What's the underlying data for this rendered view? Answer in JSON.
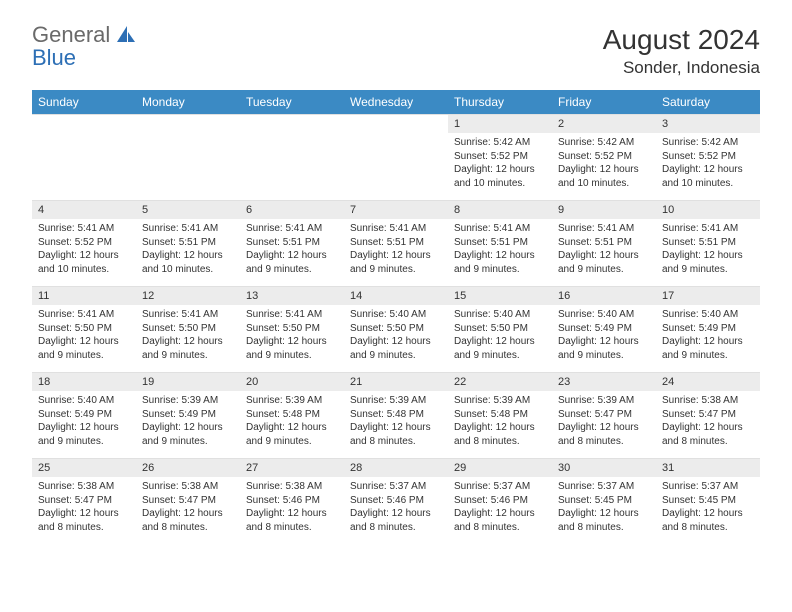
{
  "logo": {
    "word1": "General",
    "word2": "Blue"
  },
  "title": "August 2024",
  "location": "Sonder, Indonesia",
  "colors": {
    "header_bg": "#3b8ac4",
    "header_text": "#ffffff",
    "daynum_bg": "#ececec",
    "text": "#333333",
    "logo_gray": "#6a6a6a",
    "logo_blue": "#2d6fb5"
  },
  "weekdays": [
    "Sunday",
    "Monday",
    "Tuesday",
    "Wednesday",
    "Thursday",
    "Friday",
    "Saturday"
  ],
  "leading_blanks": 4,
  "days": [
    {
      "n": 1,
      "sunrise": "5:42 AM",
      "sunset": "5:52 PM",
      "daylight": "12 hours and 10 minutes."
    },
    {
      "n": 2,
      "sunrise": "5:42 AM",
      "sunset": "5:52 PM",
      "daylight": "12 hours and 10 minutes."
    },
    {
      "n": 3,
      "sunrise": "5:42 AM",
      "sunset": "5:52 PM",
      "daylight": "12 hours and 10 minutes."
    },
    {
      "n": 4,
      "sunrise": "5:41 AM",
      "sunset": "5:52 PM",
      "daylight": "12 hours and 10 minutes."
    },
    {
      "n": 5,
      "sunrise": "5:41 AM",
      "sunset": "5:51 PM",
      "daylight": "12 hours and 10 minutes."
    },
    {
      "n": 6,
      "sunrise": "5:41 AM",
      "sunset": "5:51 PM",
      "daylight": "12 hours and 9 minutes."
    },
    {
      "n": 7,
      "sunrise": "5:41 AM",
      "sunset": "5:51 PM",
      "daylight": "12 hours and 9 minutes."
    },
    {
      "n": 8,
      "sunrise": "5:41 AM",
      "sunset": "5:51 PM",
      "daylight": "12 hours and 9 minutes."
    },
    {
      "n": 9,
      "sunrise": "5:41 AM",
      "sunset": "5:51 PM",
      "daylight": "12 hours and 9 minutes."
    },
    {
      "n": 10,
      "sunrise": "5:41 AM",
      "sunset": "5:51 PM",
      "daylight": "12 hours and 9 minutes."
    },
    {
      "n": 11,
      "sunrise": "5:41 AM",
      "sunset": "5:50 PM",
      "daylight": "12 hours and 9 minutes."
    },
    {
      "n": 12,
      "sunrise": "5:41 AM",
      "sunset": "5:50 PM",
      "daylight": "12 hours and 9 minutes."
    },
    {
      "n": 13,
      "sunrise": "5:41 AM",
      "sunset": "5:50 PM",
      "daylight": "12 hours and 9 minutes."
    },
    {
      "n": 14,
      "sunrise": "5:40 AM",
      "sunset": "5:50 PM",
      "daylight": "12 hours and 9 minutes."
    },
    {
      "n": 15,
      "sunrise": "5:40 AM",
      "sunset": "5:50 PM",
      "daylight": "12 hours and 9 minutes."
    },
    {
      "n": 16,
      "sunrise": "5:40 AM",
      "sunset": "5:49 PM",
      "daylight": "12 hours and 9 minutes."
    },
    {
      "n": 17,
      "sunrise": "5:40 AM",
      "sunset": "5:49 PM",
      "daylight": "12 hours and 9 minutes."
    },
    {
      "n": 18,
      "sunrise": "5:40 AM",
      "sunset": "5:49 PM",
      "daylight": "12 hours and 9 minutes."
    },
    {
      "n": 19,
      "sunrise": "5:39 AM",
      "sunset": "5:49 PM",
      "daylight": "12 hours and 9 minutes."
    },
    {
      "n": 20,
      "sunrise": "5:39 AM",
      "sunset": "5:48 PM",
      "daylight": "12 hours and 9 minutes."
    },
    {
      "n": 21,
      "sunrise": "5:39 AM",
      "sunset": "5:48 PM",
      "daylight": "12 hours and 8 minutes."
    },
    {
      "n": 22,
      "sunrise": "5:39 AM",
      "sunset": "5:48 PM",
      "daylight": "12 hours and 8 minutes."
    },
    {
      "n": 23,
      "sunrise": "5:39 AM",
      "sunset": "5:47 PM",
      "daylight": "12 hours and 8 minutes."
    },
    {
      "n": 24,
      "sunrise": "5:38 AM",
      "sunset": "5:47 PM",
      "daylight": "12 hours and 8 minutes."
    },
    {
      "n": 25,
      "sunrise": "5:38 AM",
      "sunset": "5:47 PM",
      "daylight": "12 hours and 8 minutes."
    },
    {
      "n": 26,
      "sunrise": "5:38 AM",
      "sunset": "5:47 PM",
      "daylight": "12 hours and 8 minutes."
    },
    {
      "n": 27,
      "sunrise": "5:38 AM",
      "sunset": "5:46 PM",
      "daylight": "12 hours and 8 minutes."
    },
    {
      "n": 28,
      "sunrise": "5:37 AM",
      "sunset": "5:46 PM",
      "daylight": "12 hours and 8 minutes."
    },
    {
      "n": 29,
      "sunrise": "5:37 AM",
      "sunset": "5:46 PM",
      "daylight": "12 hours and 8 minutes."
    },
    {
      "n": 30,
      "sunrise": "5:37 AM",
      "sunset": "5:45 PM",
      "daylight": "12 hours and 8 minutes."
    },
    {
      "n": 31,
      "sunrise": "5:37 AM",
      "sunset": "5:45 PM",
      "daylight": "12 hours and 8 minutes."
    }
  ],
  "labels": {
    "sunrise": "Sunrise:",
    "sunset": "Sunset:",
    "daylight": "Daylight:"
  }
}
